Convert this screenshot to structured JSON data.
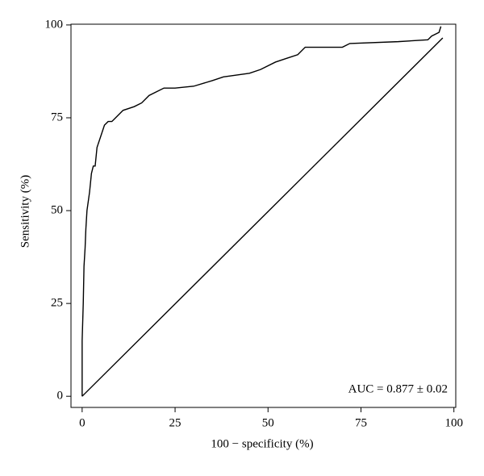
{
  "chart_data": {
    "type": "line",
    "xlabel": "100 − specificity (%)",
    "ylabel": "Sensitivity (%)",
    "annotation": "AUC = 0.877 ± 0.02",
    "xlim": [
      -3,
      100.5
    ],
    "ylim": [
      -3,
      100.2
    ],
    "xticks": [
      0,
      25,
      50,
      75,
      100
    ],
    "yticks": [
      0,
      25,
      50,
      75,
      100
    ],
    "series": [
      {
        "color": "#000000",
        "x": [
          0,
          0,
          0.3,
          0.5,
          0.8,
          1,
          1.3,
          2,
          2.5,
          3,
          3.5,
          4,
          5,
          6,
          7,
          8,
          9,
          10,
          11,
          14,
          16,
          18,
          20,
          22,
          25,
          30,
          35,
          38,
          45,
          48,
          52,
          55,
          58,
          60,
          70,
          72,
          85,
          93,
          94,
          96,
          96.5
        ],
        "values": [
          0,
          15,
          25,
          35,
          40,
          45,
          50,
          55,
          60,
          62,
          62,
          67,
          70,
          73,
          74,
          74,
          75,
          76,
          77,
          78,
          79,
          81,
          82,
          83,
          83,
          83.5,
          85,
          86,
          87,
          88,
          90,
          91,
          92,
          94,
          94,
          95,
          95.5,
          96,
          97,
          98,
          99.6
        ]
      },
      {
        "color": "#000000",
        "x": [
          0,
          97
        ],
        "values": [
          0,
          96.5
        ]
      }
    ]
  }
}
